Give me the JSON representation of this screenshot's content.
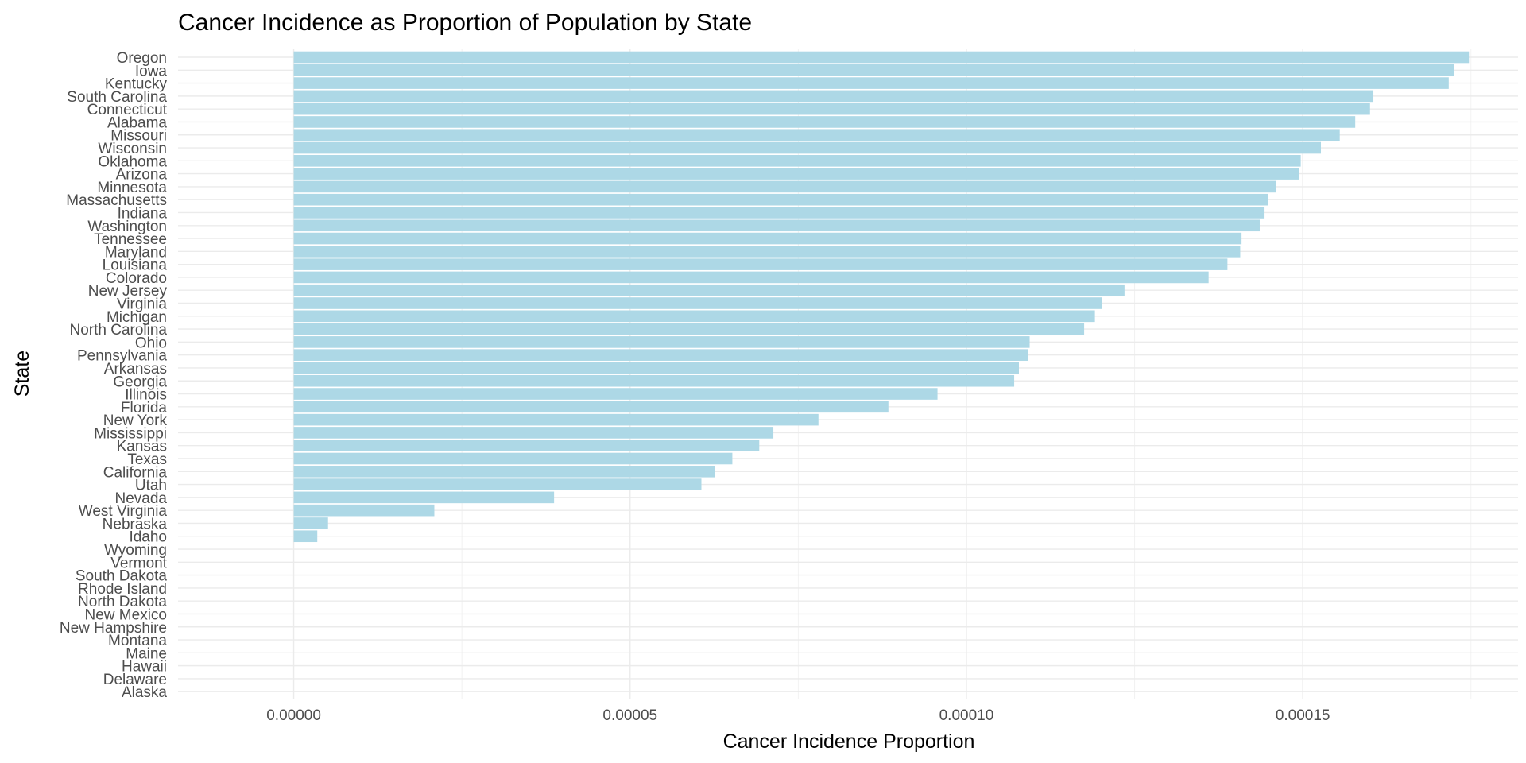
{
  "chart_data": {
    "type": "bar",
    "orientation": "horizontal",
    "title": "Cancer Incidence as Proportion of Population by State",
    "xlabel": "Cancer Incidence Proportion",
    "ylabel": "State",
    "xlim": [
      -1.72e-05,
      0.000182
    ],
    "x_ticks": [
      0,
      5e-05,
      0.0001,
      0.00015
    ],
    "x_tick_labels": [
      "0.00000",
      "0.00005",
      "0.00010",
      "0.00015"
    ],
    "grid": true,
    "legend": "none",
    "bar_color": "#add8e6",
    "categories": [
      "Oregon",
      "Iowa",
      "Kentucky",
      "South Carolina",
      "Connecticut",
      "Alabama",
      "Missouri",
      "Wisconsin",
      "Oklahoma",
      "Arizona",
      "Minnesota",
      "Massachusetts",
      "Indiana",
      "Washington",
      "Tennessee",
      "Maryland",
      "Louisiana",
      "Colorado",
      "New Jersey",
      "Virginia",
      "Michigan",
      "North Carolina",
      "Ohio",
      "Pennsylvania",
      "Arkansas",
      "Georgia",
      "Illinois",
      "Florida",
      "New York",
      "Mississippi",
      "Kansas",
      "Texas",
      "California",
      "Utah",
      "Nevada",
      "West Virginia",
      "Nebraska",
      "Idaho",
      "Wyoming",
      "Vermont",
      "South Dakota",
      "Rhode Island",
      "North Dakota",
      "New Mexico",
      "New Hampshire",
      "Montana",
      "Maine",
      "Hawaii",
      "Delaware",
      "Alaska"
    ],
    "values": [
      0.0001747,
      0.0001725,
      0.0001717,
      0.0001605,
      0.00016,
      0.0001578,
      0.0001555,
      0.0001527,
      0.0001497,
      0.0001495,
      0.000146,
      0.0001449,
      0.0001442,
      0.0001436,
      0.0001409,
      0.0001407,
      0.0001388,
      0.000136,
      0.0001235,
      0.0001202,
      0.0001191,
      0.0001175,
      0.0001094,
      0.0001092,
      0.0001078,
      0.0001071,
      9.57e-05,
      8.84e-05,
      7.8e-05,
      7.13e-05,
      6.92e-05,
      6.52e-05,
      6.26e-05,
      6.06e-05,
      3.87e-05,
      2.09e-05,
      5.1e-06,
      3.5e-06,
      0,
      0,
      0,
      0,
      0,
      0,
      0,
      0,
      0,
      0,
      0,
      0
    ]
  }
}
